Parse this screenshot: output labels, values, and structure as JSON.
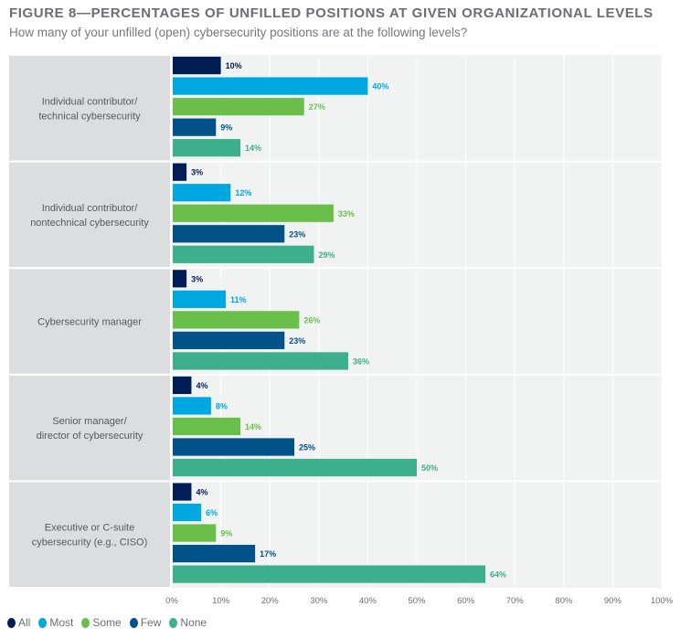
{
  "chart_data": {
    "type": "bar",
    "orientation": "horizontal",
    "title": "FIGURE 8—PERCENTAGES OF UNFILLED POSITIONS AT GIVEN ORGANIZATIONAL LEVELS",
    "subtitle": "How many of your unfilled (open) cybersecurity positions are at the following levels?",
    "categories": [
      [
        "Individual contributor/",
        "technical cybersecurity"
      ],
      [
        "Individual contributor/",
        "nontechnical cybersecurity"
      ],
      [
        "Cybersecurity manager"
      ],
      [
        "Senior manager/",
        "director of cybersecurity"
      ],
      [
        "Executive or C-suite",
        "cybersecurity (e.g., CISO)"
      ]
    ],
    "series": [
      {
        "name": "All",
        "color": "#001e56",
        "values": [
          10,
          3,
          3,
          4,
          4
        ]
      },
      {
        "name": "Most",
        "color": "#00a8e1",
        "values": [
          40,
          12,
          11,
          8,
          6
        ]
      },
      {
        "name": "Some",
        "color": "#6abf4b",
        "values": [
          27,
          33,
          26,
          14,
          9
        ]
      },
      {
        "name": "Few",
        "color": "#005288",
        "values": [
          9,
          23,
          23,
          25,
          17
        ]
      },
      {
        "name": "None",
        "color": "#3daf8c",
        "values": [
          14,
          29,
          36,
          50,
          64
        ]
      }
    ],
    "xlim": [
      0,
      100
    ],
    "xticks": [
      "0%",
      "10%",
      "20%",
      "30%",
      "40%",
      "50%",
      "60%",
      "70%",
      "80%",
      "90%",
      "100%"
    ],
    "grid": true,
    "legend": "bottom-left",
    "value_suffix": "%"
  }
}
